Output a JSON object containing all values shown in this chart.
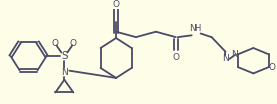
{
  "bg_color": "#FEFDE8",
  "line_color": "#4a4a6a",
  "line_width": 1.3,
  "font_size": 6.5,
  "figsize": [
    2.77,
    1.04
  ],
  "dpi": 100,
  "xlim": [
    0,
    277
  ],
  "ylim": [
    0,
    104
  ]
}
